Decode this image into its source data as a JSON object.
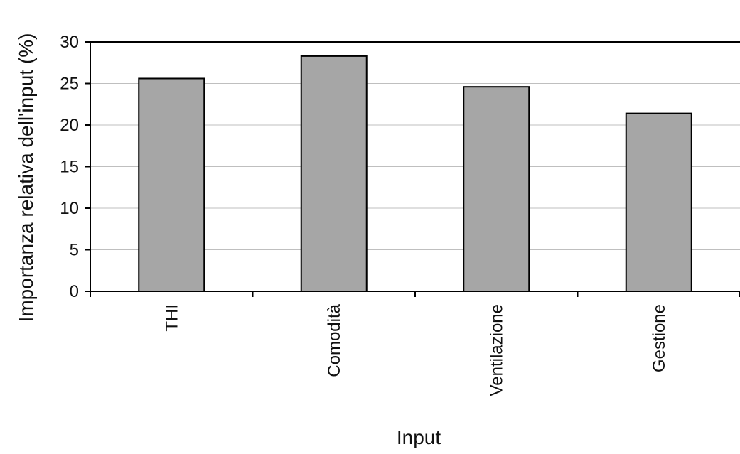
{
  "chart_data": {
    "type": "bar",
    "title": "",
    "xlabel": "Input",
    "ylabel": "Importanza relativa dell'input (%)",
    "categories": [
      "THI",
      "Comodità",
      "Ventilazione",
      "Gestione"
    ],
    "values": [
      25.6,
      28.3,
      24.6,
      21.4
    ],
    "ylim": [
      0,
      30
    ],
    "yticks": [
      0,
      5,
      10,
      15,
      20,
      25,
      30
    ],
    "grid": "horizontal",
    "bar_color": "#a6a6a6",
    "gridline_color": "#bfbfbf"
  }
}
